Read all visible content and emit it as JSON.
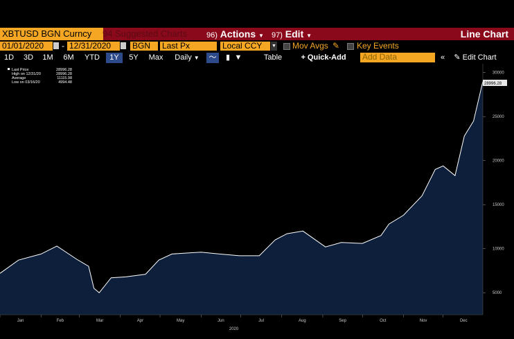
{
  "toolbar": {
    "security": "XBTUSD BGN Curncy",
    "suggested_charts": "94 Suggested Charts",
    "actions_num": "96)",
    "actions": "Actions",
    "edit_num": "97)",
    "edit": "Edit",
    "chart_type": "Line Chart"
  },
  "controls": {
    "start_date": "01/01/2020",
    "end_date": "12/31/2020",
    "source": "BGN",
    "field": "Last Px",
    "currency": "Local CCY",
    "mov_avgs": "Mov Avgs",
    "key_events": "Key Events"
  },
  "periods": [
    "1D",
    "3D",
    "1M",
    "6M",
    "YTD",
    "1Y",
    "5Y",
    "Max"
  ],
  "selected_period": "1Y",
  "frequency": "Daily",
  "table_label": "Table",
  "quick_add": "+ Quick-Add",
  "add_data_placeholder": "Add Data",
  "edit_chart": "Edit Chart",
  "colors": {
    "accent": "#f5a623",
    "title_bg": "#8a0a1c",
    "fill": "#0d1f3b",
    "line": "#ffffff"
  },
  "chart_data": {
    "type": "area",
    "legend": [
      {
        "label": "Last Price",
        "value": "28996.28"
      },
      {
        "label": "High on 12/31/20",
        "value": "28996.28"
      },
      {
        "label": "Average",
        "value": "11115.98"
      },
      {
        "label": "Low on 03/16/20",
        "value": "4994.48"
      }
    ],
    "last_value_label": "28996.28",
    "x_ticks": [
      "Jan",
      "Feb",
      "Mar",
      "Apr",
      "May",
      "Jun",
      "Jul",
      "Aug",
      "Sep",
      "Oct",
      "Nov",
      "Dec"
    ],
    "year_label": "2020",
    "y_ticks": [
      5000,
      10000,
      15000,
      20000,
      25000,
      30000
    ],
    "ylim": [
      2500,
      31000
    ],
    "x": [
      "2020-01-01",
      "2020-01-15",
      "2020-02-01",
      "2020-02-13",
      "2020-02-28",
      "2020-03-08",
      "2020-03-12",
      "2020-03-16",
      "2020-03-25",
      "2020-04-05",
      "2020-04-20",
      "2020-04-30",
      "2020-05-10",
      "2020-05-20",
      "2020-06-01",
      "2020-06-15",
      "2020-06-30",
      "2020-07-15",
      "2020-07-27",
      "2020-08-05",
      "2020-08-17",
      "2020-09-03",
      "2020-09-15",
      "2020-10-01",
      "2020-10-15",
      "2020-10-21",
      "2020-11-01",
      "2020-11-15",
      "2020-11-25",
      "2020-12-01",
      "2020-12-10",
      "2020-12-17",
      "2020-12-24",
      "2020-12-31"
    ],
    "values": [
      7200,
      8700,
      9400,
      10300,
      8800,
      8000,
      5500,
      4994,
      6700,
      6800,
      7100,
      8700,
      9400,
      9500,
      9600,
      9400,
      9200,
      9200,
      11000,
      11700,
      12000,
      10200,
      10700,
      10600,
      11500,
      12800,
      13800,
      16000,
      19000,
      19400,
      18300,
      22800,
      24500,
      28996
    ]
  }
}
